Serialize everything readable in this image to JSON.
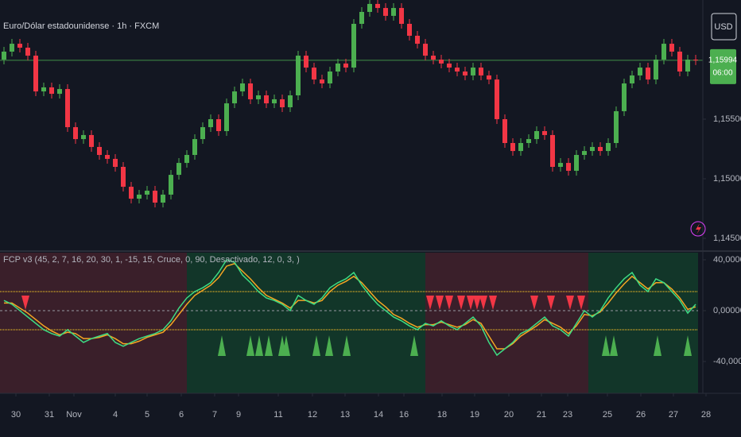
{
  "chart_data": [
    {
      "type": "candlestick",
      "title": "Euro/Dólar estadounidense · 1h · FXCM",
      "currency": "USD",
      "up_color": "#4caf50",
      "down_color": "#f23645",
      "x": [
        0,
        1,
        2,
        3,
        4,
        5,
        6,
        7,
        8,
        9,
        10,
        11,
        12,
        13,
        14,
        15,
        16,
        17,
        18,
        19,
        20,
        21,
        22,
        23,
        24,
        25,
        26,
        27,
        28,
        29,
        30,
        31,
        32,
        33,
        34,
        35,
        36,
        37,
        38,
        39,
        40,
        41,
        42,
        43,
        44,
        45,
        46,
        47,
        48,
        49,
        50,
        51,
        52,
        53,
        54,
        55,
        56,
        57,
        58,
        59,
        60,
        61,
        62,
        63,
        64,
        65,
        66,
        67,
        68,
        69,
        70,
        71,
        72,
        73,
        74,
        75,
        76,
        77,
        78,
        79,
        80,
        81,
        82,
        83,
        84,
        85,
        86,
        87
      ],
      "open": [
        1.16,
        1.16067,
        1.16133,
        1.161,
        1.16033,
        1.15733,
        1.15767,
        1.15713,
        1.15753,
        1.15433,
        1.15333,
        1.15367,
        1.15267,
        1.152,
        1.15167,
        1.151,
        1.14933,
        1.14833,
        1.14867,
        1.149,
        1.148,
        1.14867,
        1.15033,
        1.15133,
        1.152,
        1.15333,
        1.15433,
        1.155,
        1.154,
        1.15633,
        1.15733,
        1.158,
        1.15667,
        1.157,
        1.15633,
        1.15667,
        1.156,
        1.157,
        1.16033,
        1.15933,
        1.15833,
        1.158,
        1.159,
        1.15967,
        1.15933,
        1.163,
        1.164,
        1.16467,
        1.16433,
        1.16367,
        1.16433,
        1.163,
        1.162,
        1.16133,
        1.16033,
        1.16,
        1.15967,
        1.15933,
        1.159,
        1.15867,
        1.15933,
        1.15867,
        1.15833,
        1.155,
        1.153,
        1.15233,
        1.153,
        1.15333,
        1.154,
        1.15367,
        1.151,
        1.15133,
        1.15067,
        1.152,
        1.15233,
        1.15267,
        1.15233,
        1.153,
        1.15567,
        1.158,
        1.15867,
        1.15933,
        1.15833,
        1.16,
        1.16133,
        1.16067,
        1.159,
        1.16
      ],
      "high": [
        1.16107,
        1.16173,
        1.16173,
        1.1614,
        1.16073,
        1.15807,
        1.15807,
        1.15793,
        1.15793,
        1.15473,
        1.15407,
        1.15407,
        1.15307,
        1.1524,
        1.15207,
        1.1514,
        1.14973,
        1.14907,
        1.1494,
        1.1494,
        1.14907,
        1.15073,
        1.15173,
        1.1524,
        1.15373,
        1.15473,
        1.1554,
        1.1554,
        1.15673,
        1.15773,
        1.1584,
        1.1584,
        1.1574,
        1.1574,
        1.15707,
        1.15707,
        1.1574,
        1.16073,
        1.16073,
        1.15973,
        1.15873,
        1.1594,
        1.16007,
        1.16007,
        1.1634,
        1.1644,
        1.16507,
        1.16507,
        1.16473,
        1.16473,
        1.16473,
        1.1634,
        1.1624,
        1.16173,
        1.16073,
        1.1604,
        1.16007,
        1.15973,
        1.1594,
        1.15973,
        1.15973,
        1.15907,
        1.15873,
        1.1554,
        1.1534,
        1.1534,
        1.15373,
        1.1544,
        1.1544,
        1.15407,
        1.15173,
        1.15173,
        1.1524,
        1.15273,
        1.15307,
        1.15307,
        1.1534,
        1.15607,
        1.1584,
        1.15907,
        1.15973,
        1.15973,
        1.1604,
        1.16173,
        1.16173,
        1.16107,
        1.1604,
        1.1604
      ],
      "low": [
        1.1596,
        1.16027,
        1.1606,
        1.15993,
        1.15693,
        1.15693,
        1.15673,
        1.15673,
        1.15393,
        1.15293,
        1.15293,
        1.15227,
        1.1516,
        1.15127,
        1.1506,
        1.14893,
        1.14793,
        1.14793,
        1.14827,
        1.1476,
        1.1476,
        1.14827,
        1.14993,
        1.15093,
        1.1516,
        1.15293,
        1.15393,
        1.1536,
        1.1536,
        1.15593,
        1.15693,
        1.15627,
        1.15627,
        1.15593,
        1.15593,
        1.1556,
        1.1556,
        1.1566,
        1.15893,
        1.15793,
        1.1576,
        1.1576,
        1.1586,
        1.15893,
        1.15893,
        1.1626,
        1.1636,
        1.16393,
        1.16327,
        1.16327,
        1.1626,
        1.1616,
        1.16093,
        1.15993,
        1.1596,
        1.15927,
        1.15893,
        1.1586,
        1.15827,
        1.15827,
        1.15827,
        1.15793,
        1.1546,
        1.1526,
        1.15193,
        1.15193,
        1.1526,
        1.15293,
        1.15327,
        1.1506,
        1.1506,
        1.15027,
        1.15027,
        1.1516,
        1.15193,
        1.15193,
        1.15193,
        1.1526,
        1.15527,
        1.1576,
        1.15827,
        1.15793,
        1.15793,
        1.1596,
        1.16027,
        1.1586,
        1.1586,
        1.15954
      ],
      "close": [
        1.16067,
        1.16133,
        1.161,
        1.16033,
        1.15733,
        1.15767,
        1.15713,
        1.15753,
        1.15433,
        1.15333,
        1.15367,
        1.15267,
        1.152,
        1.15167,
        1.151,
        1.14933,
        1.14833,
        1.14867,
        1.149,
        1.148,
        1.14867,
        1.15033,
        1.15133,
        1.152,
        1.15333,
        1.15433,
        1.155,
        1.154,
        1.15633,
        1.15733,
        1.158,
        1.15667,
        1.157,
        1.15633,
        1.15667,
        1.156,
        1.157,
        1.16033,
        1.15933,
        1.15833,
        1.158,
        1.159,
        1.15967,
        1.15933,
        1.163,
        1.164,
        1.16467,
        1.16433,
        1.16367,
        1.16433,
        1.163,
        1.162,
        1.16133,
        1.16033,
        1.16,
        1.15967,
        1.15933,
        1.159,
        1.15867,
        1.15933,
        1.15867,
        1.15833,
        1.155,
        1.153,
        1.15233,
        1.153,
        1.15333,
        1.154,
        1.15367,
        1.151,
        1.15133,
        1.15067,
        1.152,
        1.15233,
        1.15267,
        1.15233,
        1.153,
        1.15567,
        1.158,
        1.15867,
        1.15933,
        1.15833,
        1.16,
        1.16133,
        1.16067,
        1.159,
        1.16,
        1.15994
      ],
      "last_price": {
        "value": 1.15994,
        "label": "1,15994"
      },
      "countdown": "06:00",
      "xlim": [
        -0.5,
        92.7
      ],
      "xticks": [
        {
          "value": 1.5,
          "label": "30"
        },
        {
          "value": 5.7,
          "label": "31"
        },
        {
          "value": 8.8,
          "label": "Nov"
        },
        {
          "value": 14,
          "label": "4"
        },
        {
          "value": 18,
          "label": "5"
        },
        {
          "value": 22.3,
          "label": "6"
        },
        {
          "value": 26.5,
          "label": "7"
        },
        {
          "value": 29.5,
          "label": "9"
        },
        {
          "value": 34.5,
          "label": "11"
        },
        {
          "value": 38.8,
          "label": "12"
        },
        {
          "value": 42.9,
          "label": "13"
        },
        {
          "value": 47.1,
          "label": "14"
        },
        {
          "value": 50.3,
          "label": "16"
        },
        {
          "value": 55.1,
          "label": "18"
        },
        {
          "value": 59.2,
          "label": "19"
        },
        {
          "value": 63.5,
          "label": "20"
        },
        {
          "value": 67.6,
          "label": "21"
        },
        {
          "value": 70.9,
          "label": "23"
        },
        {
          "value": 75.9,
          "label": "25"
        },
        {
          "value": 80.1,
          "label": "26"
        },
        {
          "value": 84.2,
          "label": "27"
        },
        {
          "value": 88.3,
          "label": "28"
        }
      ],
      "ylim": [
        1.144,
        1.165
      ],
      "yticks": [
        {
          "value": 1.155,
          "label": "1,15500"
        },
        {
          "value": 1.15,
          "label": "1,15000"
        },
        {
          "value": 1.145,
          "label": "1,14500"
        }
      ]
    },
    {
      "type": "line",
      "title": "FCP v3 (45, 2, 7, 16, 20, 30, 1, -15, 15, Cruce, 0, 90, Desactivado, 12, 0, 3, )",
      "x": [
        0,
        1,
        2,
        3,
        4,
        5,
        6,
        7,
        8,
        9,
        10,
        11,
        12,
        13,
        14,
        15,
        16,
        17,
        18,
        19,
        20,
        21,
        22,
        23,
        24,
        25,
        26,
        27,
        28,
        29,
        30,
        31,
        32,
        33,
        34,
        35,
        36,
        37,
        38,
        39,
        40,
        41,
        42,
        43,
        44,
        45,
        46,
        47,
        48,
        49,
        50,
        51,
        52,
        53,
        54,
        55,
        56,
        57,
        58,
        59,
        60,
        61,
        62,
        63,
        64,
        65,
        66,
        67,
        68,
        69,
        70,
        71,
        72,
        73,
        74,
        75,
        76,
        77,
        78,
        79,
        80,
        81,
        82,
        83,
        84,
        85,
        86,
        87
      ],
      "series": [
        {
          "color": "#3ddc84",
          "values": [
            8,
            5,
            0,
            -5,
            -10,
            -15,
            -18,
            -20,
            -15,
            -20,
            -25,
            -22,
            -20,
            -18,
            -25,
            -28,
            -25,
            -22,
            -20,
            -18,
            -15,
            -8,
            2,
            10,
            15,
            18,
            22,
            30,
            40,
            38,
            28,
            22,
            15,
            10,
            8,
            5,
            0,
            12,
            8,
            5,
            10,
            18,
            22,
            25,
            30,
            20,
            12,
            5,
            0,
            -5,
            -8,
            -12,
            -15,
            -10,
            -12,
            -8,
            -12,
            -15,
            -10,
            -5,
            -12,
            -25,
            -35,
            -30,
            -25,
            -18,
            -15,
            -10,
            -5,
            -12,
            -15,
            -20,
            -10,
            0,
            -5,
            0,
            10,
            18,
            25,
            30,
            20,
            15,
            25,
            22,
            15,
            8,
            -2,
            5
          ]
        },
        {
          "color": "#f5a623",
          "values": [
            6,
            6,
            2,
            -2,
            -7,
            -12,
            -16,
            -19,
            -17,
            -18,
            -22,
            -22,
            -21,
            -19,
            -22,
            -26,
            -26,
            -24,
            -21,
            -19,
            -17,
            -11,
            -3,
            5,
            12,
            16,
            20,
            26,
            35,
            37,
            31,
            25,
            18,
            12,
            9,
            6,
            2,
            8,
            8,
            6,
            8,
            15,
            20,
            23,
            27,
            22,
            15,
            8,
            3,
            -3,
            -6,
            -10,
            -13,
            -11,
            -11,
            -9,
            -11,
            -13,
            -11,
            -7,
            -10,
            -20,
            -30,
            -30,
            -26,
            -20,
            -16,
            -12,
            -7,
            -10,
            -13,
            -18,
            -12,
            -3,
            -4,
            -1,
            6,
            14,
            21,
            27,
            22,
            17,
            22,
            22,
            17,
            10,
            1,
            3
          ]
        }
      ],
      "zones": [
        {
          "range": [
            -0.5,
            23
          ],
          "color": "#3a1f2a"
        },
        {
          "range": [
            23,
            53
          ],
          "color": "#123629"
        },
        {
          "range": [
            53,
            73.5
          ],
          "color": "#3a1f2a"
        },
        {
          "range": [
            73.5,
            87.3
          ],
          "color": "#123629"
        }
      ],
      "levels": [
        15,
        -15
      ],
      "level_color": "#c9a227",
      "zero_line": 0,
      "sell_signals": {
        "color": "#f23645",
        "x": [
          2.7,
          53.6,
          54.8,
          56,
          57.5,
          58.7,
          59.5,
          60.3,
          61.5,
          66.7,
          68.8,
          71.2,
          72.6
        ]
      },
      "buy_signals": {
        "color": "#4caf50",
        "x": [
          27.4,
          31,
          32.1,
          33.3,
          35,
          35.5,
          39.3,
          40.9,
          43.1,
          51.6,
          75.7,
          76.7,
          82.2,
          86
        ]
      },
      "xlim": [
        -0.5,
        92.7
      ],
      "ylim": [
        -65,
        45.6
      ],
      "yticks": [
        {
          "value": 40,
          "label": "40,00000"
        },
        {
          "value": 0,
          "label": "0,00000"
        },
        {
          "value": -40,
          "label": "-40,00000"
        }
      ]
    }
  ]
}
